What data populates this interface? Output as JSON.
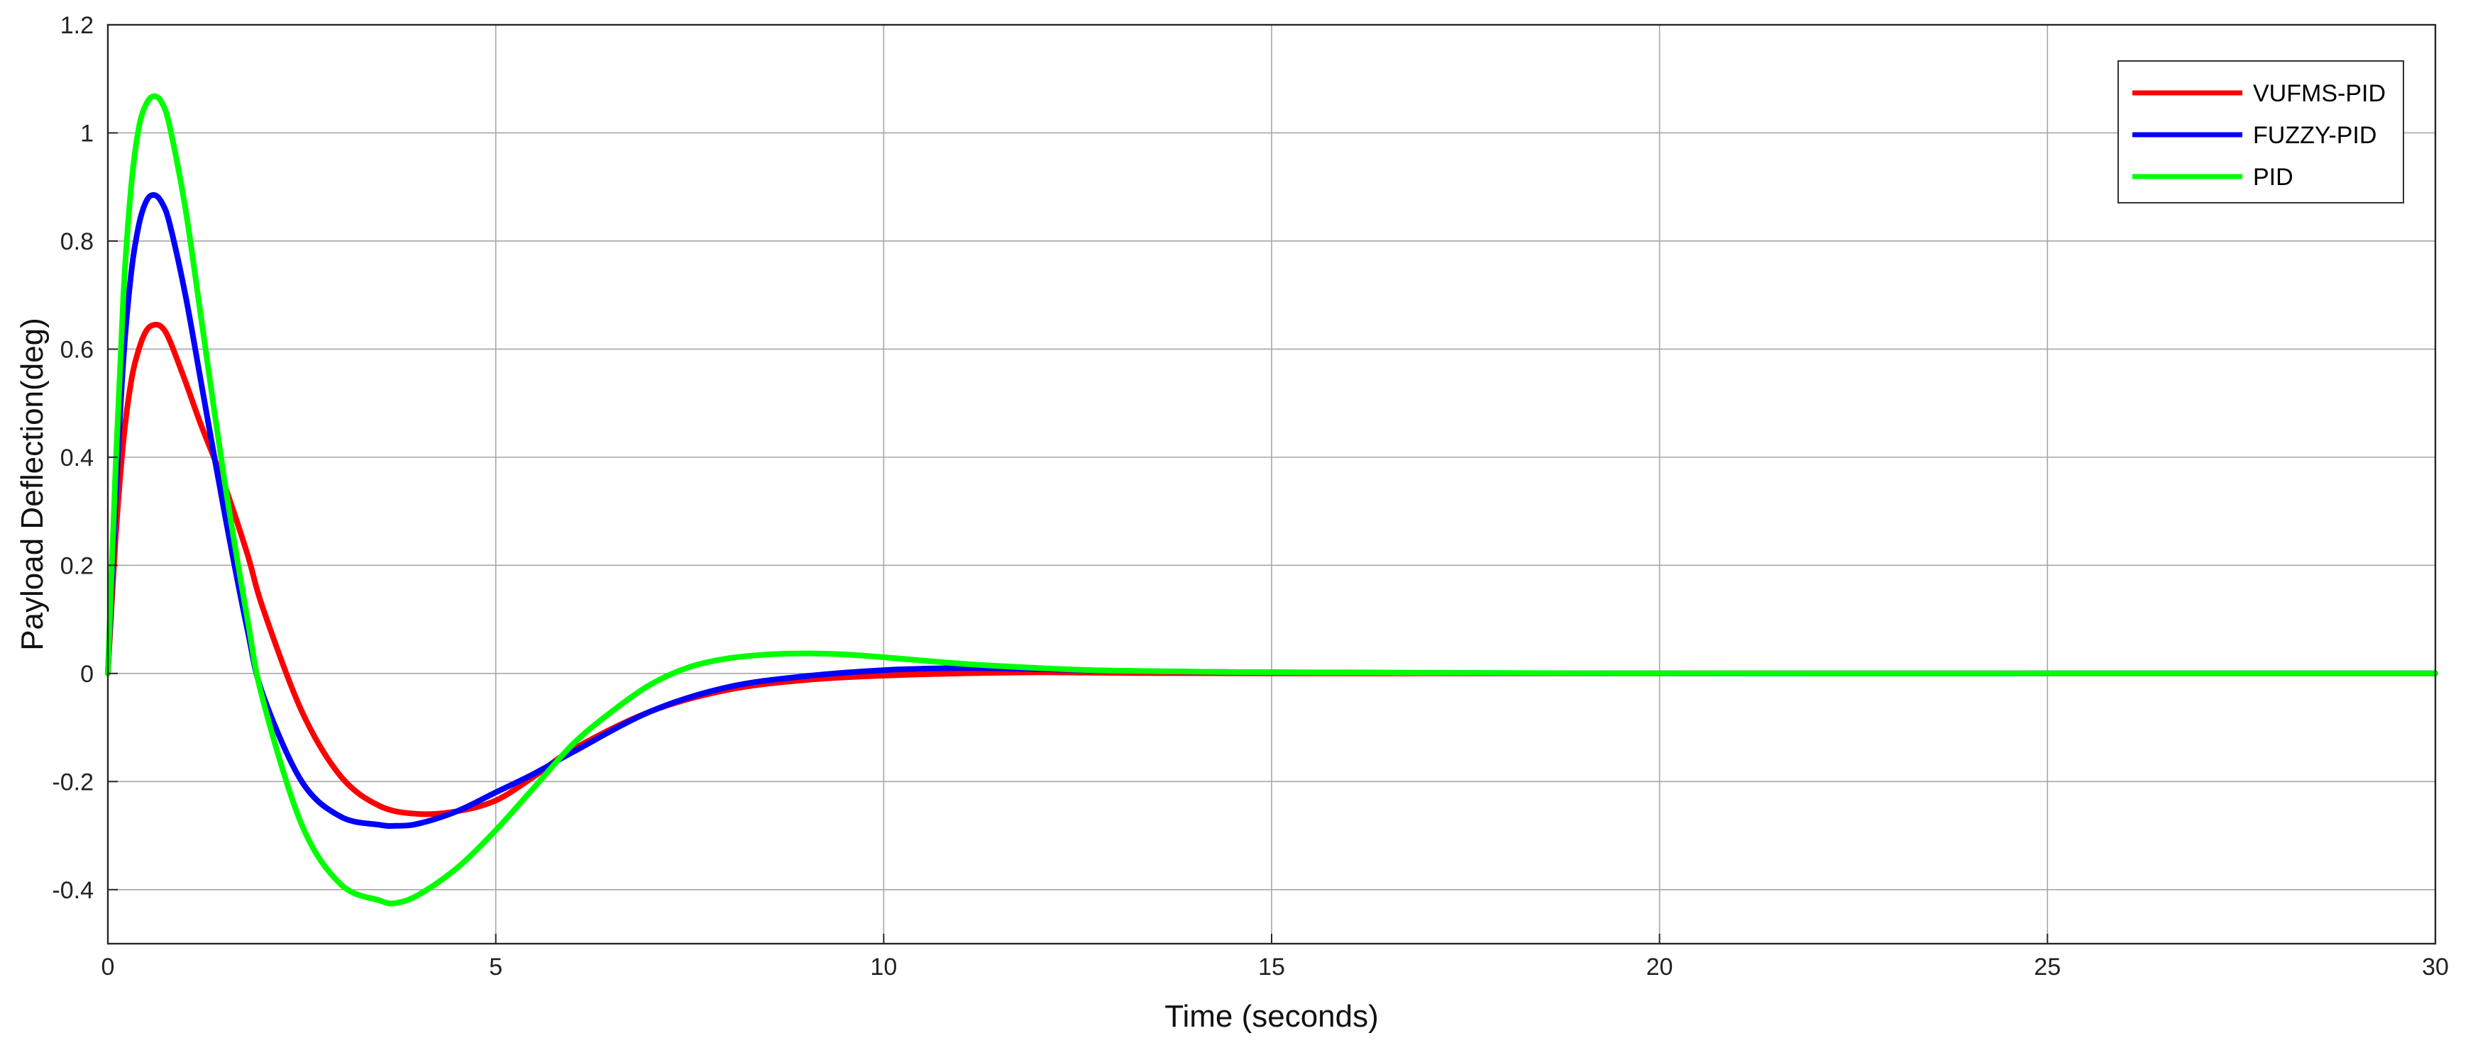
{
  "chart_data": {
    "type": "line",
    "title": "",
    "xlabel": "Time (seconds)",
    "ylabel": "Payload Deflection(deg)",
    "xlim": [
      0,
      30
    ],
    "ylim": [
      -0.5,
      1.2
    ],
    "xticks": [
      0,
      5,
      10,
      15,
      20,
      25,
      30
    ],
    "xtick_labels": [
      "0",
      "5",
      "10",
      "15",
      "20",
      "25",
      "30"
    ],
    "yticks": [
      -0.4,
      -0.2,
      0,
      0.2,
      0.4,
      0.6,
      0.8,
      1,
      1.2
    ],
    "ytick_labels": [
      "-0.4",
      "-0.2",
      "0",
      "0.2",
      "0.4",
      "0.6",
      "0.8",
      "1",
      "1.2"
    ],
    "grid": true,
    "legend_position": "top-right",
    "series": [
      {
        "name": "VUFMS-PID",
        "color": "#ff0000",
        "x": [
          0,
          0.1,
          0.2,
          0.3,
          0.4,
          0.5,
          0.6,
          0.7,
          0.8,
          1.0,
          1.2,
          1.5,
          1.8,
          2.0,
          2.5,
          3.0,
          3.5,
          4.0,
          4.5,
          5.0,
          5.5,
          6.0,
          7.0,
          8.0,
          9.0,
          10.0,
          11.0,
          12.0,
          13.0,
          15.0,
          20.0,
          25.0,
          30.0
        ],
        "y": [
          0,
          0.25,
          0.43,
          0.54,
          0.6,
          0.635,
          0.645,
          0.64,
          0.615,
          0.54,
          0.46,
          0.35,
          0.22,
          0.12,
          -0.07,
          -0.19,
          -0.245,
          -0.26,
          -0.255,
          -0.235,
          -0.19,
          -0.14,
          -0.07,
          -0.03,
          -0.012,
          -0.004,
          0.0,
          0.002,
          0.001,
          0.0,
          0.0,
          0.0,
          0.0
        ]
      },
      {
        "name": "FUZZY-PID",
        "color": "#0000ff",
        "x": [
          0,
          0.1,
          0.2,
          0.3,
          0.4,
          0.5,
          0.6,
          0.7,
          0.8,
          1.0,
          1.2,
          1.5,
          1.8,
          2.0,
          2.5,
          3.0,
          3.5,
          3.7,
          4.0,
          4.5,
          5.0,
          5.5,
          6.0,
          7.0,
          8.0,
          9.0,
          10.0,
          11.0,
          12.0,
          13.0,
          15.0,
          20.0,
          25.0,
          30.0
        ],
        "y": [
          0,
          0.32,
          0.58,
          0.74,
          0.83,
          0.875,
          0.885,
          0.87,
          0.83,
          0.7,
          0.54,
          0.3,
          0.08,
          -0.04,
          -0.2,
          -0.265,
          -0.28,
          -0.282,
          -0.278,
          -0.255,
          -0.22,
          -0.185,
          -0.145,
          -0.07,
          -0.025,
          -0.005,
          0.006,
          0.01,
          0.008,
          0.005,
          0.002,
          0.0,
          0.0,
          0.0
        ]
      },
      {
        "name": "PID",
        "color": "#00ff00",
        "x": [
          0,
          0.1,
          0.2,
          0.3,
          0.4,
          0.5,
          0.6,
          0.7,
          0.8,
          1.0,
          1.2,
          1.5,
          1.8,
          2.0,
          2.5,
          3.0,
          3.5,
          3.7,
          4.0,
          4.5,
          5.0,
          5.5,
          6.0,
          6.5,
          7.0,
          7.5,
          8.0,
          8.5,
          9.0,
          9.5,
          10.0,
          11.0,
          12.0,
          13.0,
          15.0,
          17.0,
          20.0,
          25.0,
          30.0
        ],
        "y": [
          0,
          0.38,
          0.7,
          0.9,
          1.01,
          1.055,
          1.068,
          1.055,
          1.01,
          0.86,
          0.66,
          0.36,
          0.1,
          -0.05,
          -0.28,
          -0.39,
          -0.42,
          -0.425,
          -0.41,
          -0.36,
          -0.29,
          -0.21,
          -0.13,
          -0.07,
          -0.02,
          0.012,
          0.028,
          0.035,
          0.037,
          0.035,
          0.03,
          0.018,
          0.01,
          0.005,
          0.002,
          0.001,
          0.0,
          0.0,
          0.0
        ]
      }
    ]
  }
}
